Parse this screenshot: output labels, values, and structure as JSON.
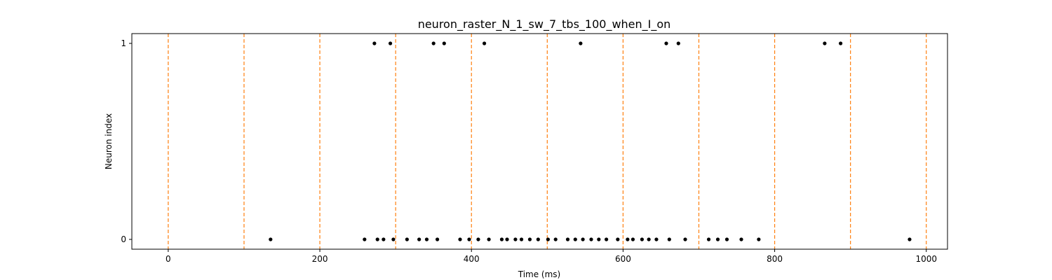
{
  "chart_data": {
    "type": "scatter",
    "title": "neuron_raster_N_1_sw_7_tbs_100_when_I_on",
    "xlabel": "Time (ms)",
    "ylabel": "Neuron index",
    "xlim": [
      -48,
      1028
    ],
    "ylim": [
      -0.05,
      1.05
    ],
    "xticks": [
      0,
      200,
      400,
      600,
      800,
      1000
    ],
    "yticks": [
      0,
      1
    ],
    "grid": false,
    "marker_color": "#000000",
    "vline_color": "#ff7f0e",
    "vlines": [
      0,
      100,
      200,
      300,
      400,
      500,
      600,
      700,
      800,
      900,
      1000
    ],
    "series": [
      {
        "neuron": 0,
        "x": [
          135,
          259,
          276,
          284,
          297,
          315,
          331,
          341,
          355,
          385,
          397,
          409,
          423,
          440,
          447,
          458,
          466,
          477,
          488,
          501,
          511,
          527,
          537,
          547,
          558,
          568,
          578,
          593,
          606,
          613,
          625,
          634,
          644,
          661,
          682,
          713,
          725,
          737,
          756,
          779,
          978
        ]
      },
      {
        "neuron": 1,
        "x": [
          272,
          293,
          350,
          364,
          417,
          544,
          657,
          673,
          866,
          887
        ]
      }
    ]
  }
}
